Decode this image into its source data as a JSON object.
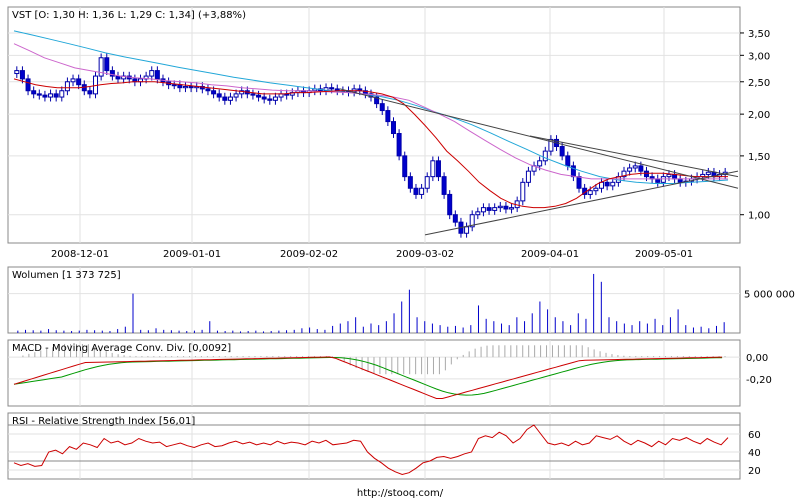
{
  "chart_data": [
    {
      "type": "candlestick",
      "title": "VST [O: 1,30  H: 1,36  L: 1,29  C: 1,34] (+3,88%)",
      "x_ticks": [
        "2008-12-01",
        "2009-01-01",
        "2009-02-02",
        "2009-03-02",
        "2009-04-01",
        "2009-05-01"
      ],
      "y_ticks": [
        "3,50",
        "3,00",
        "2,50",
        "2,00",
        "1,50",
        "1,00"
      ],
      "y_tick_values": [
        3.5,
        3.0,
        2.5,
        2.0,
        1.5,
        1.0
      ],
      "scale": "log",
      "ylim": [
        0.84,
        4.1
      ],
      "grid": true,
      "candles_note": "approximate daily closes read from chart",
      "closes": [
        2.7,
        2.55,
        2.35,
        2.3,
        2.28,
        2.25,
        2.3,
        2.25,
        2.35,
        2.5,
        2.55,
        2.45,
        2.35,
        2.3,
        2.6,
        2.95,
        2.7,
        2.6,
        2.55,
        2.6,
        2.55,
        2.5,
        2.55,
        2.6,
        2.7,
        2.55,
        2.5,
        2.45,
        2.45,
        2.4,
        2.42,
        2.4,
        2.42,
        2.38,
        2.35,
        2.3,
        2.25,
        2.2,
        2.25,
        2.3,
        2.35,
        2.3,
        2.28,
        2.25,
        2.22,
        2.2,
        2.25,
        2.3,
        2.28,
        2.32,
        2.35,
        2.32,
        2.35,
        2.38,
        2.35,
        2.4,
        2.38,
        2.35,
        2.35,
        2.33,
        2.38,
        2.35,
        2.3,
        2.25,
        2.15,
        2.05,
        1.9,
        1.75,
        1.5,
        1.3,
        1.2,
        1.15,
        1.2,
        1.3,
        1.45,
        1.3,
        1.15,
        1.0,
        0.95,
        0.88,
        0.92,
        1.0,
        1.02,
        1.05,
        1.03,
        1.05,
        1.06,
        1.04,
        1.05,
        1.1,
        1.25,
        1.35,
        1.4,
        1.45,
        1.55,
        1.68,
        1.6,
        1.5,
        1.4,
        1.3,
        1.2,
        1.15,
        1.18,
        1.2,
        1.25,
        1.22,
        1.25,
        1.3,
        1.35,
        1.38,
        1.4,
        1.35,
        1.3,
        1.28,
        1.25,
        1.3,
        1.32,
        1.28,
        1.25,
        1.26,
        1.28,
        1.3,
        1.32,
        1.34,
        1.3,
        1.32,
        1.34
      ],
      "ma_red": [
        2.55,
        2.5,
        2.45,
        2.42,
        2.4,
        2.4,
        2.4,
        2.42,
        2.45,
        2.47,
        2.48,
        2.5,
        2.5,
        2.5,
        2.48,
        2.46,
        2.44,
        2.42,
        2.4,
        2.38,
        2.36,
        2.34,
        2.32,
        2.3,
        2.3,
        2.3,
        2.32,
        2.32,
        2.33,
        2.34,
        2.35,
        2.35,
        2.35,
        2.33,
        2.3,
        2.25,
        2.15,
        2.0,
        1.85,
        1.7,
        1.55,
        1.45,
        1.35,
        1.25,
        1.18,
        1.12,
        1.08,
        1.06,
        1.05,
        1.05,
        1.06,
        1.08,
        1.12,
        1.18,
        1.24,
        1.28,
        1.3,
        1.32,
        1.33,
        1.33,
        1.33,
        1.32,
        1.31,
        1.3,
        1.3,
        1.3,
        1.3
      ],
      "ma_magenta": [
        3.25,
        3.1,
        2.95,
        2.85,
        2.75,
        2.7,
        2.65,
        2.6,
        2.57,
        2.55,
        2.52,
        2.5,
        2.48,
        2.45,
        2.43,
        2.4,
        2.38,
        2.36,
        2.35,
        2.35,
        2.34,
        2.33,
        2.32,
        2.3,
        2.28,
        2.25,
        2.2,
        2.1,
        2.0,
        1.9,
        1.78,
        1.67,
        1.57,
        1.48,
        1.41,
        1.36,
        1.32,
        1.3,
        1.28,
        1.28,
        1.28,
        1.28,
        1.28,
        1.28,
        1.28,
        1.28,
        1.28,
        1.28
      ],
      "ma_cyan": [
        3.55,
        3.45,
        3.35,
        3.25,
        3.15,
        3.05,
        2.97,
        2.9,
        2.83,
        2.76,
        2.7,
        2.64,
        2.58,
        2.53,
        2.48,
        2.44,
        2.4,
        2.36,
        2.33,
        2.3,
        2.26,
        2.2,
        2.12,
        2.03,
        1.95,
        1.86,
        1.76,
        1.66,
        1.57,
        1.48,
        1.41,
        1.35,
        1.3,
        1.27,
        1.25,
        1.24,
        1.24,
        1.25,
        1.26,
        1.27
      ],
      "trendlines": "converging triangle"
    },
    {
      "type": "bar",
      "title": "Wolumen [1 373 725]",
      "y_ticks": [
        "5 000 000"
      ],
      "y_tick_values": [
        5000000
      ],
      "ylim": [
        0,
        8000000
      ],
      "values": [
        300000,
        400000,
        350000,
        300000,
        500000,
        350000,
        300000,
        250000,
        300000,
        400000,
        350000,
        300000,
        250000,
        500000,
        800000,
        5000000,
        400000,
        350000,
        600000,
        400000,
        350000,
        300000,
        250000,
        300000,
        400000,
        1500000,
        300000,
        250000,
        300000,
        200000,
        250000,
        300000,
        200000,
        250000,
        300000,
        350000,
        400000,
        600000,
        700000,
        500000,
        400000,
        900000,
        1200000,
        1500000,
        2000000,
        800000,
        1200000,
        1000000,
        1500000,
        2500000,
        4000000,
        5500000,
        2000000,
        1500000,
        1200000,
        1000000,
        800000,
        900000,
        700000,
        1000000,
        3500000,
        1800000,
        1500000,
        1200000,
        1000000,
        2000000,
        1500000,
        2500000,
        4000000,
        3000000,
        2000000,
        1500000,
        1000000,
        2500000,
        1800000,
        7500000,
        6500000,
        2000000,
        1500000,
        1200000,
        1000000,
        1500000,
        1200000,
        1800000,
        1000000,
        2000000,
        3000000,
        1000000,
        700000,
        800000,
        600000,
        900000,
        1373725
      ]
    },
    {
      "type": "line",
      "title": "MACD - Moving Average Conv. Div. [0,0092]",
      "y_ticks": [
        "0,00",
        "-0,20"
      ],
      "y_tick_values": [
        0.0,
        -0.2
      ],
      "ylim": [
        -0.45,
        0.13
      ]
    },
    {
      "type": "line",
      "title": "RSI - Relative Strength Index [56,01]",
      "y_ticks": [
        "60",
        "40",
        "20"
      ],
      "y_tick_values": [
        60,
        40,
        20
      ],
      "ylim": [
        10,
        80
      ],
      "values": [
        28,
        25,
        27,
        24,
        25,
        40,
        42,
        38,
        46,
        43,
        50,
        48,
        45,
        55,
        50,
        52,
        48,
        50,
        55,
        52,
        50,
        51,
        46,
        48,
        50,
        47,
        45,
        48,
        50,
        46,
        47,
        50,
        52,
        49,
        51,
        48,
        50,
        48,
        52,
        49,
        51,
        50,
        48,
        52,
        50,
        53,
        48,
        49,
        50,
        53,
        52,
        40,
        33,
        28,
        22,
        18,
        15,
        17,
        22,
        28,
        30,
        34,
        35,
        33,
        35,
        38,
        40,
        55,
        58,
        56,
        62,
        58,
        50,
        55,
        65,
        70,
        60,
        50,
        48,
        50,
        47,
        52,
        48,
        50,
        58,
        56,
        54,
        58,
        52,
        48,
        53,
        50,
        46,
        52,
        48,
        55,
        53,
        56,
        52,
        49,
        55,
        51,
        48,
        56
      ]
    },
    {
      "type": "text",
      "footer": "http://stooq.com/"
    }
  ]
}
